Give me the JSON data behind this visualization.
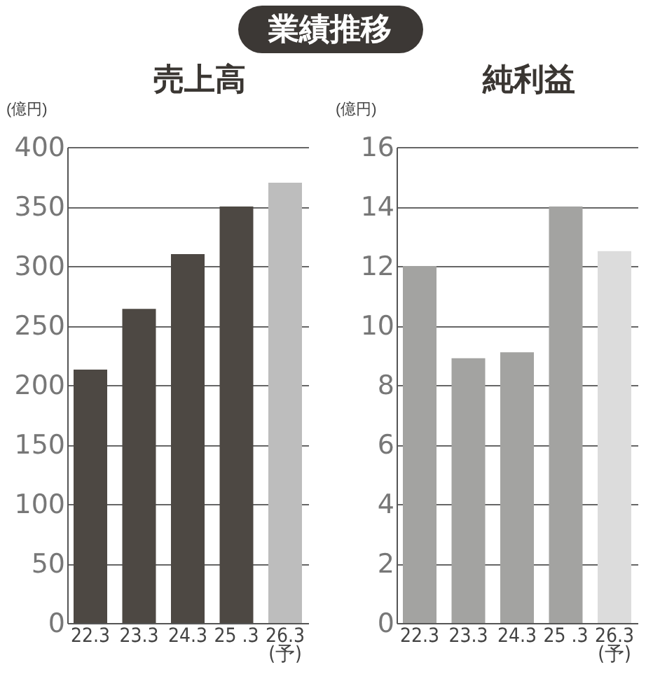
{
  "chart_data": [
    {
      "type": "bar",
      "title": "売上高",
      "ylabel": "(億円)",
      "annotations": [
        "業績推移"
      ],
      "categories": [
        "22.3",
        "23.3",
        "24.3",
        "25 .3",
        "26.3\n(予)"
      ],
      "values": [
        213,
        264,
        310,
        350,
        370
      ],
      "colors": [
        "#4d4843",
        "#4d4843",
        "#4d4843",
        "#4d4843",
        "#bdbdbd"
      ],
      "ylim": [
        0,
        400
      ],
      "yticks": [
        0,
        50,
        100,
        150,
        200,
        250,
        300,
        350,
        400
      ],
      "grid": "y"
    },
    {
      "type": "bar",
      "title": "純利益",
      "ylabel": "(億円)",
      "categories": [
        "22.3",
        "23.3",
        "24.3",
        "25 .3",
        "26.3\n(予)"
      ],
      "values": [
        12,
        8.9,
        9.1,
        14,
        12.5
      ],
      "colors": [
        "#a3a3a1",
        "#a3a3a1",
        "#a3a3a1",
        "#a3a3a1",
        "#dcdcdc"
      ],
      "ylim": [
        0,
        16
      ],
      "yticks": [
        0,
        2,
        4,
        6,
        8,
        10,
        12,
        14,
        16
      ],
      "grid": "y"
    }
  ]
}
